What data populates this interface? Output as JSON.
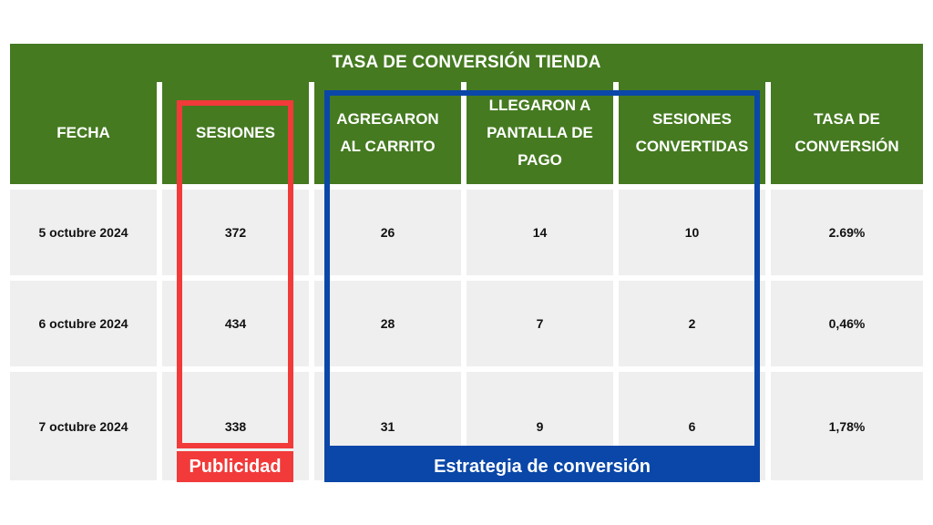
{
  "title": "TASA DE CONVERSIÓN TIENDA",
  "headers": [
    "FECHA",
    "SESIONES",
    "AGREGARON AL CARRITO",
    "LLEGARON A PANTALLA DE PAGO",
    "SESIONES CONVERTIDAS",
    "TASA DE CONVERSIÓN"
  ],
  "rows": [
    [
      "5 octubre 2024",
      "372",
      "26",
      "14",
      "10",
      "2.69%"
    ],
    [
      "6 octubre 2024",
      "434",
      "28",
      "7",
      "2",
      "0,46%"
    ],
    [
      "7 octubre 2024",
      "338",
      "31",
      "9",
      "6",
      "1,78%"
    ]
  ],
  "annotations": {
    "publicidad": {
      "label": "Publicidad",
      "color": "#f23a3a"
    },
    "estrategia": {
      "label": "Estrategia de conversión",
      "color": "#0a47a8"
    }
  },
  "colors": {
    "header_green": "#457a20",
    "cell_gray": "#efefef"
  }
}
